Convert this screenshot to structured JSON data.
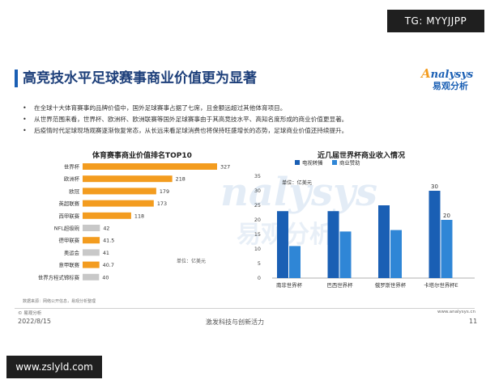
{
  "badges": {
    "top_right": "TG: MYYJJPP",
    "bottom_left": "www.zslyld.com"
  },
  "header": {
    "title": "高竞技水平足球赛事商业价值更为显著"
  },
  "brand": {
    "name_en": "nalysys",
    "name_en_initial": "A",
    "name_cn": "易观分析"
  },
  "bullets": [
    "在全球十大体育赛事的品牌价值中，国外足球赛事占据了七席，且金额远超过其他体育项目。",
    "从世界范围来看，世界杯、欧洲杯、欧洲联赛等国外足球赛事由于其高竞技水平、高知名度形成的商业价值更显著。",
    "后疫情时代足球现场观赛逐渐恢复常态，从长远来看足球消费也将保持旺盛增长的态势，足球商业价值还持续提升。"
  ],
  "bullet_marker": "•",
  "left_chart": {
    "unit": "单位：亿美元"
  },
  "right_chart": {
    "unit": "单位：亿美元"
  },
  "footer": {
    "note": "数据来源：网络公开信息，易观分析整理",
    "copyright": "© 易观分析",
    "url": "www.analysys.cn",
    "date": "2022/8/15",
    "slogan": "激发科技与创新活力",
    "page": "11"
  },
  "watermark": {
    "text_en": "nalysys",
    "text_cn": "易观分析"
  },
  "colors": {
    "orange": "#f39c1f",
    "gray": "#c8c8c8",
    "blue_dark": "#1a5fb4",
    "blue_light": "#2f86d6",
    "title": "#1d3f7a"
  },
  "chart_data": [
    {
      "type": "bar",
      "orientation": "horizontal",
      "title": "体育赛事商业价值排名TOP10",
      "categories": [
        "世界杯",
        "欧洲杯",
        "欧冠",
        "英超联赛",
        "西甲联赛",
        "NFL超级碗",
        "德甲联赛",
        "奥运会",
        "意甲联赛",
        "世界方程式锦标赛"
      ],
      "values": [
        327,
        218,
        179,
        173,
        118,
        42,
        41.5,
        41,
        40.7,
        40
      ],
      "value_labels": [
        "327",
        "218",
        "179",
        "173",
        "118",
        "42",
        "41.5",
        "41",
        "40.7",
        "40"
      ],
      "bar_colors": [
        "orange",
        "orange",
        "orange",
        "orange",
        "orange",
        "gray",
        "orange",
        "gray",
        "orange",
        "gray"
      ],
      "xlim": [
        0,
        327
      ],
      "unit": "单位：亿美元"
    },
    {
      "type": "bar",
      "title": "近几届世界杯商业收入情况",
      "categories": [
        "南非世界杯",
        "巴西世界杯",
        "俄罗斯世界杯",
        "卡塔尔世界杯E"
      ],
      "series": [
        {
          "name": "电视转播",
          "values": [
            23,
            23,
            25,
            30
          ],
          "color": "blue_dark"
        },
        {
          "name": "商业赞助",
          "values": [
            11,
            16,
            16.5,
            20
          ],
          "color": "blue_light"
        }
      ],
      "value_labels": [
        {
          "category": 3,
          "series": 0,
          "text": "30"
        },
        {
          "category": 3,
          "series": 1,
          "text": "20"
        }
      ],
      "y_ticks": [
        "0",
        "5",
        "10",
        "15",
        "20",
        "25",
        "30",
        "35"
      ],
      "ylim": [
        0,
        35
      ],
      "legend": "top-left",
      "unit": "单位：亿美元"
    }
  ]
}
